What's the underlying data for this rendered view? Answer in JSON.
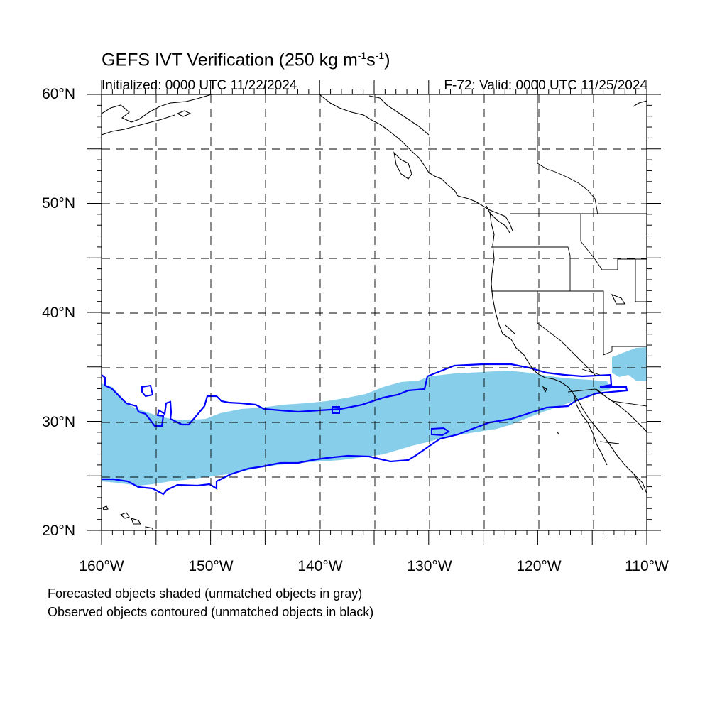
{
  "title": {
    "main": "GEFS IVT Verification (250 kg m",
    "sup1": "-1",
    "mid": "s",
    "sup2": "-1",
    "end": ")"
  },
  "initialized": "Initialized: 0000 UTC 11/22/2024",
  "valid": "F-72: Valid: 0000 UTC 11/25/2024",
  "lat_labels": [
    "60°N",
    "50°N",
    "40°N",
    "30°N",
    "20°N"
  ],
  "lon_labels": [
    "160°W",
    "150°W",
    "140°W",
    "130°W",
    "120°W",
    "110°W"
  ],
  "notes": [
    "Forecasted objects shaded (unmatched objects in gray)",
    "Observed objects contoured (unmatched objects in black)"
  ],
  "colors": {
    "forecast_fill": "#87ceeb",
    "observed_contour": "#0000ff",
    "coastline": "#000000",
    "grid": "#000000"
  }
}
